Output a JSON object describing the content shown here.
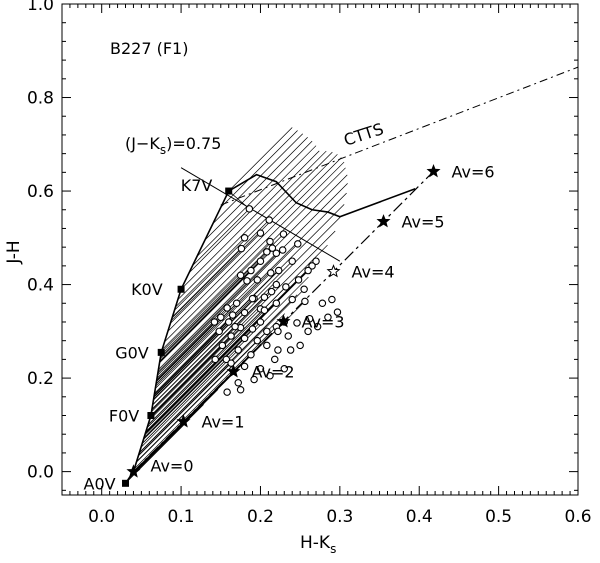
{
  "chart_data": {
    "type": "scatter",
    "title": "B227 (F1)",
    "xlabel": "H-K",
    "xlabel_sub": "s",
    "ylabel": "J-H",
    "xlim": [
      -0.05,
      0.6
    ],
    "ylim": [
      -0.05,
      1.0
    ],
    "x_ticks": [
      0.0,
      0.1,
      0.2,
      0.3,
      0.4,
      0.5,
      0.6
    ],
    "x_tick_labels": [
      "0.0",
      "0.1",
      "0.2",
      "0.3",
      "0.4",
      "0.5",
      "0.6"
    ],
    "y_ticks": [
      0.0,
      0.2,
      0.4,
      0.6,
      0.8,
      1.0
    ],
    "y_tick_labels": [
      "0.0",
      "0.2",
      "0.4",
      "0.6",
      "0.8",
      "1.0"
    ],
    "grid": false,
    "dwarf_locus": [
      [
        0.03,
        -0.025
      ],
      [
        0.04,
        0.0
      ],
      [
        0.062,
        0.12
      ],
      [
        0.075,
        0.255
      ],
      [
        0.1,
        0.39
      ],
      [
        0.16,
        0.6
      ],
      [
        0.195,
        0.635
      ],
      [
        0.22,
        0.62
      ],
      [
        0.245,
        0.575
      ],
      [
        0.265,
        0.56
      ],
      [
        0.285,
        0.555
      ],
      [
        0.3,
        0.545
      ],
      [
        0.395,
        0.605
      ]
    ],
    "spectral_types": [
      {
        "label": "A0V",
        "x": 0.03,
        "y": -0.025
      },
      {
        "label": "F0V",
        "x": 0.062,
        "y": 0.12
      },
      {
        "label": "G0V",
        "x": 0.075,
        "y": 0.255
      },
      {
        "label": "K0V",
        "x": 0.1,
        "y": 0.39
      },
      {
        "label": "K7V",
        "x": 0.16,
        "y": 0.6
      }
    ],
    "ctts_locus": {
      "label": "CTTS",
      "x": [
        0.15,
        0.6
      ],
      "y": [
        0.57,
        0.865
      ]
    },
    "jk_line": {
      "label": "(J−K",
      "label_sub": "s",
      "label_tail": ")=0.75",
      "x": [
        0.1,
        0.3
      ],
      "y": [
        0.65,
        0.45
      ]
    },
    "reddening_vector": [
      {
        "label": "Av=0",
        "x": 0.04,
        "y": 0.0
      },
      {
        "label": "Av=1",
        "x": 0.103,
        "y": 0.107
      },
      {
        "label": "Av=2",
        "x": 0.166,
        "y": 0.214
      },
      {
        "label": "Av=3",
        "x": 0.229,
        "y": 0.321
      },
      {
        "label": "Av=4",
        "x": 0.292,
        "y": 0.428
      },
      {
        "label": "Av=5",
        "x": 0.355,
        "y": 0.535
      },
      {
        "label": "Av=6",
        "x": 0.418,
        "y": 0.642
      }
    ],
    "sources": [
      [
        0.186,
        0.562
      ],
      [
        0.211,
        0.538
      ],
      [
        0.247,
        0.487
      ],
      [
        0.229,
        0.508
      ],
      [
        0.212,
        0.492
      ],
      [
        0.215,
        0.478
      ],
      [
        0.208,
        0.47
      ],
      [
        0.228,
        0.474
      ],
      [
        0.22,
        0.467
      ],
      [
        0.2,
        0.45
      ],
      [
        0.188,
        0.43
      ],
      [
        0.175,
        0.42
      ],
      [
        0.183,
        0.408
      ],
      [
        0.196,
        0.41
      ],
      [
        0.213,
        0.425
      ],
      [
        0.223,
        0.43
      ],
      [
        0.27,
        0.45
      ],
      [
        0.265,
        0.44
      ],
      [
        0.26,
        0.43
      ],
      [
        0.248,
        0.41
      ],
      [
        0.232,
        0.395
      ],
      [
        0.214,
        0.385
      ],
      [
        0.205,
        0.373
      ],
      [
        0.192,
        0.37
      ],
      [
        0.17,
        0.36
      ],
      [
        0.158,
        0.35
      ],
      [
        0.165,
        0.335
      ],
      [
        0.18,
        0.34
      ],
      [
        0.2,
        0.348
      ],
      [
        0.22,
        0.36
      ],
      [
        0.24,
        0.368
      ],
      [
        0.256,
        0.364
      ],
      [
        0.278,
        0.36
      ],
      [
        0.29,
        0.368
      ],
      [
        0.297,
        0.341
      ],
      [
        0.285,
        0.33
      ],
      [
        0.262,
        0.327
      ],
      [
        0.246,
        0.318
      ],
      [
        0.23,
        0.32
      ],
      [
        0.22,
        0.31
      ],
      [
        0.208,
        0.3
      ],
      [
        0.19,
        0.305
      ],
      [
        0.175,
        0.308
      ],
      [
        0.16,
        0.32
      ],
      [
        0.15,
        0.33
      ],
      [
        0.142,
        0.32
      ],
      [
        0.148,
        0.3
      ],
      [
        0.163,
        0.29
      ],
      [
        0.18,
        0.285
      ],
      [
        0.196,
        0.28
      ],
      [
        0.208,
        0.27
      ],
      [
        0.222,
        0.26
      ],
      [
        0.238,
        0.26
      ],
      [
        0.222,
        0.3
      ],
      [
        0.2,
        0.32
      ],
      [
        0.168,
        0.31
      ],
      [
        0.152,
        0.27
      ],
      [
        0.172,
        0.26
      ],
      [
        0.188,
        0.25
      ],
      [
        0.157,
        0.24
      ],
      [
        0.143,
        0.24
      ],
      [
        0.163,
        0.232
      ],
      [
        0.18,
        0.225
      ],
      [
        0.2,
        0.22
      ],
      [
        0.218,
        0.24
      ],
      [
        0.235,
        0.29
      ],
      [
        0.25,
        0.27
      ],
      [
        0.172,
        0.19
      ],
      [
        0.158,
        0.17
      ],
      [
        0.175,
        0.175
      ],
      [
        0.192,
        0.197
      ],
      [
        0.212,
        0.205
      ],
      [
        0.23,
        0.22
      ],
      [
        0.26,
        0.3
      ],
      [
        0.272,
        0.31
      ],
      [
        0.18,
        0.5
      ],
      [
        0.2,
        0.51
      ],
      [
        0.176,
        0.477
      ],
      [
        0.24,
        0.45
      ],
      [
        0.255,
        0.39
      ],
      [
        0.22,
        0.4
      ],
      [
        0.19,
        0.37
      ],
      [
        0.205,
        0.345
      ]
    ]
  }
}
